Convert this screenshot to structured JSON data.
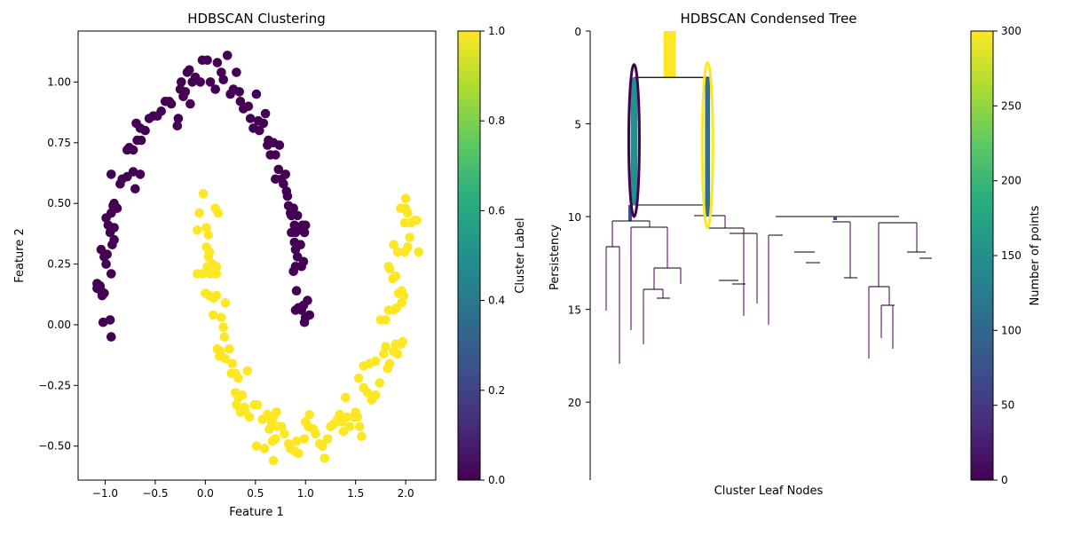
{
  "chart_data": [
    {
      "type": "scatter",
      "title": "HDBSCAN Clustering",
      "xlabel": "Feature 1",
      "ylabel": "Feature 2",
      "xlim": [
        -1.27,
        2.3
      ],
      "ylim": [
        -0.64,
        1.21
      ],
      "xticks": [
        -1.0,
        -0.5,
        0.0,
        0.5,
        1.0,
        1.5,
        2.0
      ],
      "yticks": [
        -0.5,
        -0.25,
        0.0,
        0.25,
        0.5,
        0.75,
        1.0
      ],
      "grid": false,
      "colorbar": {
        "label": "Cluster Label",
        "range": [
          0.0,
          1.0
        ],
        "ticks": [
          0.0,
          0.2,
          0.4,
          0.6,
          0.8,
          1.0
        ],
        "colormap": "viridis"
      },
      "series": [
        {
          "label_value": 0,
          "color": "#440154",
          "points": [
            [
              -1.02,
              0.01
            ],
            [
              -0.95,
              0.02
            ],
            [
              -0.94,
              -0.05
            ],
            [
              -1.03,
              0.12
            ],
            [
              -1.05,
              0.16
            ],
            [
              -1.08,
              0.17
            ],
            [
              -1.04,
              0.14
            ],
            [
              -1.08,
              0.15
            ],
            [
              -1.01,
              0.13
            ],
            [
              -1.04,
              0.31
            ],
            [
              -1.01,
              0.28
            ],
            [
              -0.99,
              0.25
            ],
            [
              -0.98,
              0.29
            ],
            [
              -0.94,
              0.21
            ],
            [
              -0.93,
              0.33
            ],
            [
              -0.91,
              0.35
            ],
            [
              -0.95,
              0.38
            ],
            [
              -0.97,
              0.41
            ],
            [
              -0.91,
              0.4
            ],
            [
              -0.99,
              0.44
            ],
            [
              -0.94,
              0.46
            ],
            [
              -0.91,
              0.5
            ],
            [
              -0.88,
              0.48
            ],
            [
              -0.92,
              0.49
            ],
            [
              -0.94,
              0.62
            ],
            [
              -0.85,
              0.58
            ],
            [
              -0.83,
              0.6
            ],
            [
              -0.78,
              0.61
            ],
            [
              -0.72,
              0.63
            ],
            [
              -0.7,
              0.56
            ],
            [
              -0.65,
              0.62
            ],
            [
              -0.78,
              0.72
            ],
            [
              -0.76,
              0.73
            ],
            [
              -0.72,
              0.72
            ],
            [
              -0.68,
              0.76
            ],
            [
              -0.64,
              0.76
            ],
            [
              -0.69,
              0.83
            ],
            [
              -0.65,
              0.81
            ],
            [
              -0.6,
              0.8
            ],
            [
              -0.56,
              0.85
            ],
            [
              -0.52,
              0.86
            ],
            [
              -0.48,
              0.86
            ],
            [
              -0.44,
              0.88
            ],
            [
              -0.4,
              0.92
            ],
            [
              -0.36,
              0.92
            ],
            [
              -0.34,
              0.91
            ],
            [
              -0.28,
              0.82
            ],
            [
              -0.27,
              0.85
            ],
            [
              -0.25,
              0.97
            ],
            [
              -0.24,
              1.0
            ],
            [
              -0.22,
              0.94
            ],
            [
              -0.2,
              0.96
            ],
            [
              -0.18,
              1.04
            ],
            [
              -0.16,
              1.05
            ],
            [
              -0.15,
              0.91
            ],
            [
              -0.13,
              1.0
            ],
            [
              -0.1,
              1.02
            ],
            [
              -0.05,
              1.0
            ],
            [
              -0.03,
              1.09
            ],
            [
              0.02,
              1.09
            ],
            [
              0.05,
              1.0
            ],
            [
              0.1,
              0.97
            ],
            [
              0.12,
              1.08
            ],
            [
              0.16,
              1.04
            ],
            [
              0.18,
              1.01
            ],
            [
              0.22,
              1.11
            ],
            [
              0.25,
              0.95
            ],
            [
              0.28,
              0.97
            ],
            [
              0.31,
              1.04
            ],
            [
              0.34,
              0.96
            ],
            [
              0.35,
              0.92
            ],
            [
              0.38,
              0.89
            ],
            [
              0.43,
              0.9
            ],
            [
              0.45,
              0.85
            ],
            [
              0.48,
              0.81
            ],
            [
              0.51,
              0.95
            ],
            [
              0.53,
              0.84
            ],
            [
              0.54,
              0.8
            ],
            [
              0.58,
              0.83
            ],
            [
              0.6,
              0.87
            ],
            [
              0.62,
              0.74
            ],
            [
              0.63,
              0.76
            ],
            [
              0.65,
              0.7
            ],
            [
              0.68,
              0.75
            ],
            [
              0.7,
              0.7
            ],
            [
              0.73,
              0.64
            ],
            [
              0.74,
              0.74
            ],
            [
              0.7,
              0.6
            ],
            [
              0.76,
              0.6
            ],
            [
              0.78,
              0.58
            ],
            [
              0.8,
              0.62
            ],
            [
              0.81,
              0.55
            ],
            [
              0.82,
              0.53
            ],
            [
              0.83,
              0.49
            ],
            [
              0.85,
              0.46
            ],
            [
              0.86,
              0.45
            ],
            [
              0.88,
              0.48
            ],
            [
              0.89,
              0.41
            ],
            [
              0.9,
              0.38
            ],
            [
              0.92,
              0.45
            ],
            [
              0.86,
              0.38
            ],
            [
              0.89,
              0.34
            ],
            [
              0.9,
              0.31
            ],
            [
              0.92,
              0.28
            ],
            [
              0.95,
              0.33
            ],
            [
              0.96,
              0.4
            ],
            [
              0.97,
              0.41
            ],
            [
              0.99,
              0.38
            ],
            [
              1.0,
              0.41
            ],
            [
              0.98,
              0.26
            ],
            [
              0.96,
              0.24
            ],
            [
              0.9,
              0.24
            ],
            [
              0.91,
              0.14
            ],
            [
              0.88,
              0.22
            ],
            [
              0.9,
              0.06
            ],
            [
              0.93,
              0.07
            ],
            [
              0.96,
              0.06
            ],
            [
              1.0,
              0.03
            ],
            [
              0.98,
              0.08
            ],
            [
              1.02,
              0.1
            ],
            [
              1.04,
              0.04
            ],
            [
              0.99,
              0.01
            ]
          ]
        },
        {
          "label_value": 1,
          "color": "#fde725",
          "points": [
            [
              -0.02,
              0.54
            ],
            [
              -0.06,
              0.46
            ],
            [
              -0.08,
              0.39
            ],
            [
              0.1,
              0.48
            ],
            [
              0.13,
              0.46
            ],
            [
              0.01,
              0.4
            ],
            [
              0.03,
              0.37
            ],
            [
              0.01,
              0.32
            ],
            [
              0.04,
              0.3
            ],
            [
              0.03,
              0.28
            ],
            [
              0.02,
              0.24
            ],
            [
              0.07,
              0.25
            ],
            [
              0.11,
              0.24
            ],
            [
              -0.08,
              0.21
            ],
            [
              -0.03,
              0.21
            ],
            [
              0.05,
              0.21
            ],
            [
              0.09,
              0.21
            ],
            [
              0.11,
              0.21
            ],
            [
              0.0,
              0.13
            ],
            [
              0.04,
              0.12
            ],
            [
              0.08,
              0.11
            ],
            [
              0.11,
              0.12
            ],
            [
              0.2,
              0.09
            ],
            [
              0.08,
              0.04
            ],
            [
              0.16,
              0.03
            ],
            [
              0.19,
              -0.05
            ],
            [
              0.18,
              -0.01
            ],
            [
              0.12,
              -0.1
            ],
            [
              0.15,
              -0.11
            ],
            [
              0.16,
              -0.13
            ],
            [
              0.14,
              -0.13
            ],
            [
              0.2,
              -0.14
            ],
            [
              0.24,
              -0.1
            ],
            [
              0.27,
              -0.16
            ],
            [
              0.26,
              -0.2
            ],
            [
              0.3,
              -0.2
            ],
            [
              0.33,
              -0.22
            ],
            [
              0.3,
              -0.28
            ],
            [
              0.33,
              -0.3
            ],
            [
              0.37,
              -0.29
            ],
            [
              0.42,
              -0.19
            ],
            [
              0.39,
              -0.34
            ],
            [
              0.31,
              -0.33
            ],
            [
              0.35,
              -0.36
            ],
            [
              0.4,
              -0.36
            ],
            [
              0.44,
              -0.38
            ],
            [
              0.49,
              -0.33
            ],
            [
              0.52,
              -0.33
            ],
            [
              0.57,
              -0.39
            ],
            [
              0.51,
              -0.5
            ],
            [
              0.59,
              -0.51
            ],
            [
              0.62,
              -0.37
            ],
            [
              0.66,
              -0.4
            ],
            [
              0.68,
              -0.38
            ],
            [
              0.71,
              -0.36
            ],
            [
              0.64,
              -0.43
            ],
            [
              0.67,
              -0.48
            ],
            [
              0.7,
              -0.47
            ],
            [
              0.72,
              -0.42
            ],
            [
              0.68,
              -0.56
            ],
            [
              0.76,
              -0.42
            ],
            [
              0.79,
              -0.45
            ],
            [
              0.83,
              -0.49
            ],
            [
              0.85,
              -0.51
            ],
            [
              0.89,
              -0.52
            ],
            [
              0.91,
              -0.48
            ],
            [
              0.93,
              -0.53
            ],
            [
              0.99,
              -0.47
            ],
            [
              1.0,
              -0.4
            ],
            [
              1.03,
              -0.42
            ],
            [
              1.04,
              -0.37
            ],
            [
              1.08,
              -0.43
            ],
            [
              1.1,
              -0.45
            ],
            [
              1.14,
              -0.49
            ],
            [
              1.17,
              -0.5
            ],
            [
              1.19,
              -0.55
            ],
            [
              1.22,
              -0.47
            ],
            [
              1.25,
              -0.42
            ],
            [
              1.28,
              -0.41
            ],
            [
              1.32,
              -0.39
            ],
            [
              1.34,
              -0.37
            ],
            [
              1.36,
              -0.4
            ],
            [
              1.38,
              -0.44
            ],
            [
              1.41,
              -0.38
            ],
            [
              1.44,
              -0.42
            ],
            [
              1.48,
              -0.38
            ],
            [
              1.5,
              -0.36
            ],
            [
              1.52,
              -0.38
            ],
            [
              1.54,
              -0.42
            ],
            [
              1.56,
              -0.46
            ],
            [
              1.4,
              -0.3
            ],
            [
              1.53,
              -0.22
            ],
            [
              1.58,
              -0.26
            ],
            [
              1.62,
              -0.28
            ],
            [
              1.66,
              -0.31
            ],
            [
              1.7,
              -0.29
            ],
            [
              1.74,
              -0.24
            ],
            [
              1.58,
              -0.17
            ],
            [
              1.64,
              -0.16
            ],
            [
              1.7,
              -0.15
            ],
            [
              1.78,
              -0.12
            ],
            [
              1.82,
              -0.18
            ],
            [
              1.8,
              -0.09
            ],
            [
              1.84,
              -0.16
            ],
            [
              1.88,
              -0.11
            ],
            [
              1.9,
              -0.08
            ],
            [
              1.92,
              -0.12
            ],
            [
              1.95,
              -0.08
            ],
            [
              1.97,
              -0.07
            ],
            [
              1.75,
              0.02
            ],
            [
              1.8,
              0.02
            ],
            [
              1.83,
              0.06
            ],
            [
              1.88,
              0.06
            ],
            [
              1.91,
              0.07
            ],
            [
              1.96,
              0.09
            ],
            [
              1.93,
              0.13
            ],
            [
              1.96,
              0.14
            ],
            [
              1.98,
              0.12
            ],
            [
              1.87,
              0.19
            ],
            [
              1.9,
              0.2
            ],
            [
              1.84,
              0.23
            ],
            [
              1.83,
              0.24
            ],
            [
              1.92,
              0.3
            ],
            [
              1.99,
              0.3
            ],
            [
              2.02,
              0.32
            ],
            [
              2.04,
              0.36
            ],
            [
              1.88,
              0.33
            ],
            [
              2.13,
              0.3
            ],
            [
              1.99,
              0.42
            ],
            [
              2.05,
              0.42
            ],
            [
              2.09,
              0.43
            ],
            [
              2.11,
              0.43
            ],
            [
              1.95,
              0.48
            ],
            [
              2.0,
              0.48
            ],
            [
              2.02,
              0.46
            ],
            [
              2.0,
              0.52
            ]
          ]
        }
      ]
    },
    {
      "type": "tree",
      "title": "HDBSCAN Condensed Tree",
      "xlabel": "Cluster Leaf Nodes",
      "ylabel": "Persistency",
      "ylim": [
        0,
        24.2
      ],
      "yticks": [
        0,
        5,
        10,
        15,
        20
      ],
      "colorbar": {
        "label": "Number of points",
        "range": [
          0,
          300
        ],
        "ticks": [
          0,
          50,
          100,
          150,
          200,
          250,
          300
        ],
        "colormap": "viridis"
      },
      "root": {
        "x": 0.223,
        "y_top": 0,
        "y_bottom": 2.5,
        "points": 300
      },
      "branches": [
        {
          "x": 0.123,
          "y_top": 2.5,
          "y_bottom": 9.4,
          "points": 165
        },
        {
          "x": 0.329,
          "y_top": 2.5,
          "y_bottom": 10.0,
          "points": 120
        }
      ],
      "selected_clusters": [
        {
          "x": 0.123,
          "y_top": 1.8,
          "y_bottom": 10.0,
          "color": "#440154"
        },
        {
          "x": 0.329,
          "y_top": 1.7,
          "y_bottom": 10.6,
          "color": "#fde725"
        }
      ]
    }
  ]
}
